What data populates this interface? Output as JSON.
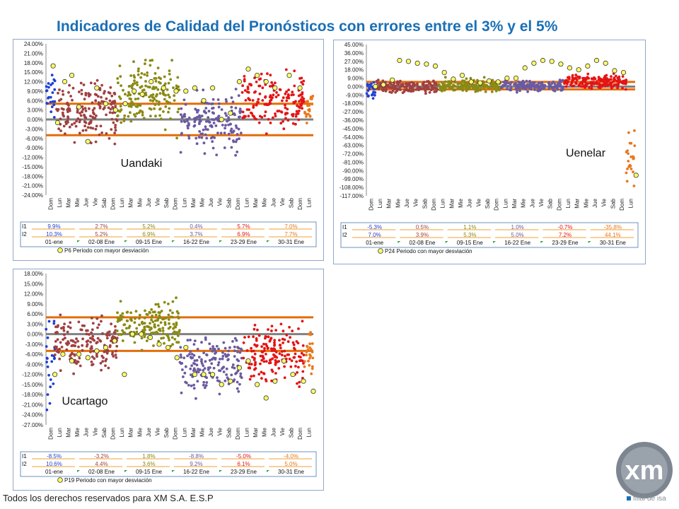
{
  "title": "Indicadores de Calidad del Pronósticos con errores entre el 3% y el 5%",
  "footer": "Todos los derechos reservados para XM S.A. E.S.P",
  "logo": {
    "text": "xm",
    "subtitle": "filial de isa"
  },
  "colors": {
    "title": "#1a6fb5",
    "band": "#e46c0a",
    "zero": "#808080",
    "marker": "#ffff66",
    "series": [
      "#1f3fd6",
      "#a04040",
      "#8a8a14",
      "#6b5aa0",
      "#e41414",
      "#e8781e"
    ]
  },
  "week_labels": [
    "01-ene",
    "02-08 Ene",
    "09-15 Ene",
    "16-22 Ene",
    "23-29 Ene",
    "30-31 Ene"
  ],
  "day_labels": [
    "Dom",
    "Lun",
    "Mar",
    "Mie",
    "Jue",
    "Vie",
    "Sab",
    "Dom",
    "Lun",
    "Mar",
    "Mie",
    "Jue",
    "Vie",
    "Sab",
    "Dom",
    "Lun",
    "Mar",
    "Mie",
    "Jue",
    "Vie",
    "Sab",
    "Dom",
    "Lun",
    "Mar",
    "Mie",
    "Jue",
    "Vie",
    "Sab",
    "Dom",
    "Lun"
  ],
  "chart_data": [
    {
      "type": "scatter",
      "name": "Uandaki",
      "band": [
        -5,
        5
      ],
      "ylim": [
        -24,
        24
      ],
      "yticks": [
        "24.00%",
        "21.00%",
        "18.00%",
        "15.00%",
        "12.00%",
        "9.00%",
        "6.00%",
        "3.00%",
        "0.00%",
        "-3.00%",
        "-6.00%",
        "-9.00%",
        "-12.00%",
        "-15.00%",
        "-18.00%",
        "-21.00%",
        "-24.00%"
      ],
      "segments": [
        {
          "days": [
            0,
            1
          ],
          "center": 8,
          "spread": 6
        },
        {
          "days": [
            1,
            8
          ],
          "center": 3,
          "spread": 7
        },
        {
          "days": [
            8,
            15
          ],
          "center": 8,
          "spread": 8
        },
        {
          "days": [
            15,
            22
          ],
          "center": -1,
          "spread": 7
        },
        {
          "days": [
            22,
            29
          ],
          "center": 6,
          "spread": 7
        },
        {
          "days": [
            29,
            30
          ],
          "center": 5,
          "spread": 5
        }
      ],
      "p_markers": [
        [
          0.3,
          17
        ],
        [
          0.8,
          -1
        ],
        [
          1.6,
          12
        ],
        [
          2.4,
          14
        ],
        [
          3.2,
          4
        ],
        [
          4.2,
          -7
        ],
        [
          5.2,
          10
        ],
        [
          6.2,
          5
        ],
        [
          7.3,
          3
        ],
        [
          8.4,
          5
        ],
        [
          9.4,
          9
        ],
        [
          10.3,
          8
        ],
        [
          11.3,
          12
        ],
        [
          12.7,
          10
        ],
        [
          14.1,
          9
        ],
        [
          15.2,
          9
        ],
        [
          16.2,
          10
        ],
        [
          17.2,
          6
        ],
        [
          18.2,
          10
        ],
        [
          19.2,
          0
        ],
        [
          20.2,
          2
        ],
        [
          21.2,
          12
        ],
        [
          22.2,
          16
        ],
        [
          23.2,
          14
        ],
        [
          24.2,
          12
        ],
        [
          25.2,
          10
        ],
        [
          26.8,
          14
        ],
        [
          28.0,
          10
        ]
      ],
      "i1": [
        "9.9%",
        "2.7%",
        "5.2%",
        "0.4%",
        "5.7%",
        "7.0%"
      ],
      "i2": [
        "10.3%",
        "5.2%",
        "6.9%",
        "3.7%",
        "6.9%",
        "7.7%"
      ],
      "legend": "P6  Periodo con mayor desviación"
    },
    {
      "type": "scatter",
      "name": "Uenelar",
      "band": [
        -3,
        5
      ],
      "ylim": [
        -117,
        45
      ],
      "yticks": [
        "45.00%",
        "36.00%",
        "27.00%",
        "18.00%",
        "9.00%",
        "0.00%",
        "-9.00%",
        "-18.00%",
        "-27.00%",
        "-36.00%",
        "-45.00%",
        "-54.00%",
        "-63.00%",
        "-72.00%",
        "-81.00%",
        "-90.00%",
        "-99.00%",
        "-108.00%",
        "-117.00%"
      ],
      "segments": [
        {
          "days": [
            0,
            1
          ],
          "center": -5,
          "spread": 8
        },
        {
          "days": [
            1,
            8
          ],
          "center": 0,
          "spread": 5
        },
        {
          "days": [
            8,
            15
          ],
          "center": 1,
          "spread": 6
        },
        {
          "days": [
            15,
            22
          ],
          "center": 1,
          "spread": 5
        },
        {
          "days": [
            22,
            29
          ],
          "center": 5,
          "spread": 6
        },
        {
          "days": [
            29,
            30
          ],
          "center": -80,
          "spread": 25
        }
      ],
      "p_markers": [
        [
          0.5,
          0
        ],
        [
          1.4,
          2
        ],
        [
          2.4,
          7
        ],
        [
          3.2,
          28
        ],
        [
          4.2,
          27
        ],
        [
          5.2,
          25
        ],
        [
          6.2,
          24
        ],
        [
          7.2,
          22
        ],
        [
          8.2,
          15
        ],
        [
          9.2,
          8
        ],
        [
          10.2,
          12
        ],
        [
          11.2,
          5
        ],
        [
          12.2,
          4
        ],
        [
          13.2,
          6
        ],
        [
          14.2,
          5
        ],
        [
          15.2,
          9
        ],
        [
          16.2,
          9
        ],
        [
          17.2,
          20
        ],
        [
          18.2,
          25
        ],
        [
          19.2,
          28
        ],
        [
          20.2,
          27
        ],
        [
          21.2,
          24
        ],
        [
          22.2,
          20
        ],
        [
          23.2,
          18
        ],
        [
          24.2,
          22
        ],
        [
          25.2,
          28
        ],
        [
          26.2,
          25
        ],
        [
          27.2,
          17
        ],
        [
          28.2,
          15
        ],
        [
          29.6,
          -95
        ]
      ],
      "i1": [
        "-5.3%",
        "0.5%",
        "1.1%",
        "1.0%",
        "-0.7%",
        "-35.8%"
      ],
      "i2": [
        "7.0%",
        "3.9%",
        "5.3%",
        "5.0%",
        "7.2%",
        "44.1%"
      ],
      "legend": "P24  Periodo con mayor desviación"
    },
    {
      "type": "scatter",
      "name": "Ucartago",
      "band": [
        -5,
        5
      ],
      "ylim": [
        -27,
        18
      ],
      "yticks": [
        "18.00%",
        "15.00%",
        "12.00%",
        "9.00%",
        "6.00%",
        "3.00%",
        "0.00%",
        "-3.00%",
        "-6.00%",
        "-9.00%",
        "-12.00%",
        "-15.00%",
        "-18.00%",
        "-21.00%",
        "-24.00%",
        "-27.00%"
      ],
      "segments": [
        {
          "days": [
            0,
            1
          ],
          "center": -9,
          "spread": 12
        },
        {
          "days": [
            1,
            8
          ],
          "center": -3,
          "spread": 6
        },
        {
          "days": [
            8,
            15
          ],
          "center": 3,
          "spread": 5
        },
        {
          "days": [
            15,
            22
          ],
          "center": -9,
          "spread": 7
        },
        {
          "days": [
            22,
            29
          ],
          "center": -6,
          "spread": 7
        },
        {
          "days": [
            29,
            30
          ],
          "center": -5,
          "spread": 6
        }
      ],
      "p_markers": [
        [
          0.5,
          -12
        ],
        [
          1.4,
          -6
        ],
        [
          2.4,
          -8
        ],
        [
          3.2,
          -6
        ],
        [
          4.2,
          -7
        ],
        [
          5.2,
          -5
        ],
        [
          6.2,
          -4
        ],
        [
          7.2,
          -2
        ],
        [
          8.3,
          -12
        ],
        [
          9.2,
          0
        ],
        [
          10.2,
          0
        ],
        [
          11.2,
          -1
        ],
        [
          12.2,
          -3
        ],
        [
          13.2,
          -4
        ],
        [
          14.2,
          -7
        ],
        [
          15.2,
          -4
        ],
        [
          16.2,
          -12
        ],
        [
          17.2,
          -12
        ],
        [
          18.2,
          -12
        ],
        [
          19.2,
          -15
        ],
        [
          20.2,
          -14
        ],
        [
          21.2,
          -10
        ],
        [
          22.2,
          -8
        ],
        [
          23.2,
          -15
        ],
        [
          24.2,
          -19
        ],
        [
          25.2,
          -14
        ],
        [
          26.2,
          -8
        ],
        [
          27.2,
          -12
        ],
        [
          28.4,
          -14
        ],
        [
          29.5,
          -17
        ]
      ],
      "i1": [
        "-8.5%",
        "-3.2%",
        "1.8%",
        "-8.8%",
        "-5.0%",
        "-4.0%"
      ],
      "i2": [
        "10.6%",
        "4.4%",
        "3.6%",
        "9.2%",
        "6.1%",
        "5.0%"
      ],
      "legend": "P19  Periodo con mayor desviación"
    }
  ]
}
